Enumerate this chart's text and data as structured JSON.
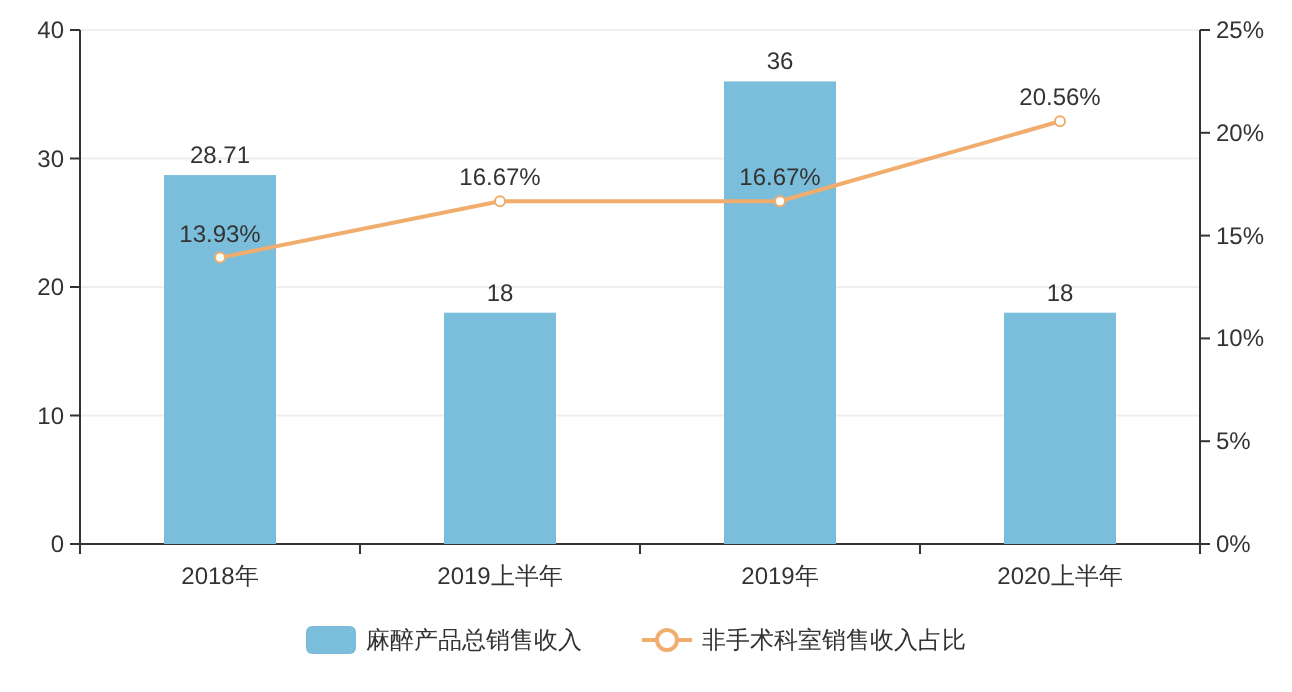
{
  "chart_data": {
    "type": "bar",
    "categories": [
      "2018年",
      "2019上半年",
      "2019年",
      "2020上半年"
    ],
    "series": [
      {
        "name": "麻醉产品总销售收入",
        "color": "#7bbedb",
        "values": [
          28.71,
          18,
          36,
          18
        ],
        "value_labels": [
          "28.71",
          "18",
          "36",
          "18"
        ]
      },
      {
        "name": "非手术科室销售收入占比",
        "type": "line",
        "axis": "y2",
        "color": "#f0ad6e",
        "marker": "circle",
        "values": [
          13.93,
          16.67,
          16.67,
          20.56
        ],
        "value_labels": [
          "13.93%",
          "16.67%",
          "16.67%",
          "20.56%"
        ]
      }
    ],
    "ylim": [
      0,
      40
    ],
    "yticks": [
      0,
      10,
      20,
      30,
      40
    ],
    "y2lim": [
      0,
      25
    ],
    "y2ticks": [
      {
        "value": 0,
        "label": "0%"
      },
      {
        "value": 5,
        "label": "5%"
      },
      {
        "value": 10,
        "label": "10%"
      },
      {
        "value": 15,
        "label": "15%"
      },
      {
        "value": 20,
        "label": "20%"
      },
      {
        "value": 25,
        "label": "25%"
      }
    ],
    "grid": "y",
    "legend": "bottom"
  }
}
